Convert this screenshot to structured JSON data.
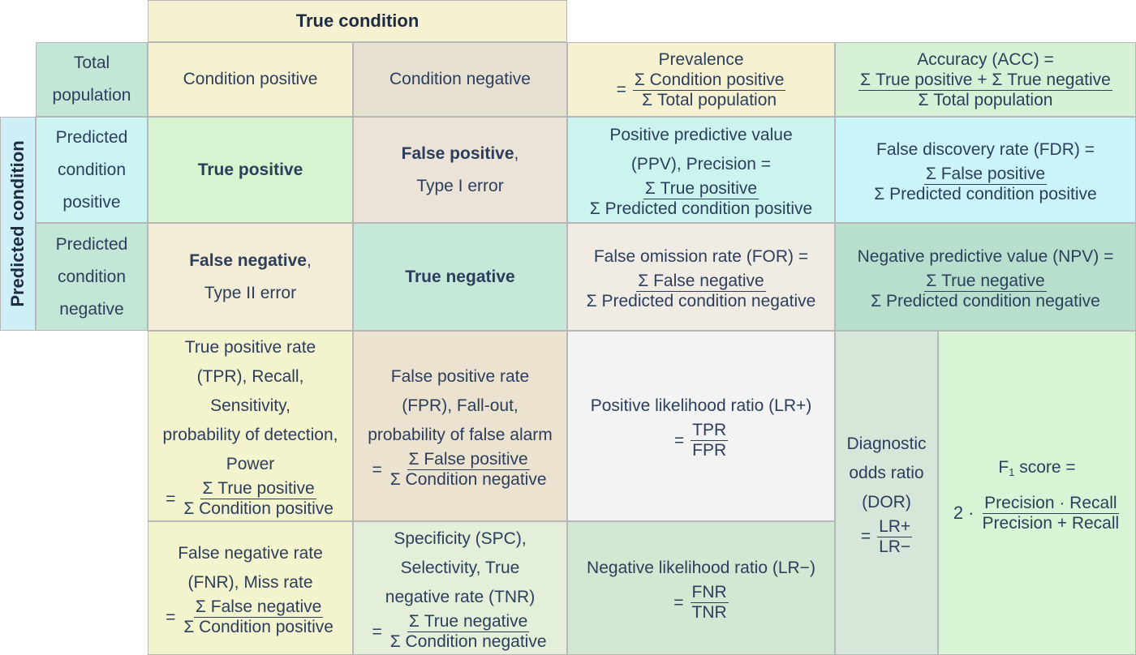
{
  "colors": {
    "yellow": "#f5f1d1",
    "tan": "#e6e0d1",
    "cyan": "#cbf4f3",
    "teal": "#c3e6d6",
    "green_light": "#d6f1d6",
    "mint": "#c7f1dc",
    "fn_bg": "#f3ecd6",
    "tn_bg": "#c5e8d8",
    "tp_bg": "#d7f3cf",
    "fp_bg": "#ebe3d7",
    "for_bg": "#f0ece4",
    "npv_bg": "#b8dfcd",
    "lrp_bg": "#f3f3f3",
    "lrn_bg": "#d3e8d3",
    "dor_bg": "#d6e6d8",
    "f1_bg": "#d9f4d4",
    "text": "#2c3e5c"
  },
  "header": {
    "true_condition": "True condition",
    "predicted_condition": "Predicted condition",
    "total_population_1": "Total",
    "total_population_2": "population",
    "condition_positive": "Condition positive",
    "condition_negative": "Condition negative"
  },
  "rows": {
    "pcp_1": "Predicted",
    "pcp_2": "condition",
    "pcp_3": "positive",
    "pcn_1": "Predicted",
    "pcn_2": "condition",
    "pcn_3": "negative"
  },
  "cells": {
    "true_positive": "True positive",
    "false_positive": "False positive",
    "false_positive_comma": ",",
    "type_i": "Type I error",
    "false_negative": "False negative",
    "false_negative_comma": ",",
    "type_ii": "Type II error",
    "true_negative": "True negative"
  },
  "metrics": {
    "prevalence": {
      "title": "Prevalence",
      "eq": "=",
      "num": "Σ Condition positive",
      "den": "Σ Total population"
    },
    "accuracy": {
      "title": "Accuracy (ACC) =",
      "num": "Σ True positive + Σ True negative",
      "den": "Σ Total population"
    },
    "ppv": {
      "line1": "Positive predictive value",
      "line2": "(PPV), Precision =",
      "num": "Σ True positive",
      "den": "Σ Predicted condition positive"
    },
    "fdr": {
      "title": "False discovery rate (FDR) =",
      "num": "Σ False positive",
      "den": "Σ Predicted condition positive"
    },
    "for": {
      "title": "False omission rate (FOR) =",
      "num": "Σ False negative",
      "den": "Σ Predicted condition negative"
    },
    "npv": {
      "title": "Negative predictive value (NPV) =",
      "num": "Σ True negative",
      "den": "Σ Predicted condition negative"
    },
    "tpr": {
      "l1": "True positive rate",
      "l2": "(TPR), Recall,",
      "l3": "Sensitivity,",
      "l4": "probability of detection,",
      "l5": "Power",
      "eq": "=",
      "num": "Σ True positive",
      "den": "Σ Condition positive"
    },
    "fpr": {
      "l1": "False positive rate",
      "l2": "(FPR), Fall-out,",
      "l3": "probability of false alarm",
      "eq": "=",
      "num": "Σ False positive",
      "den": "Σ Condition negative"
    },
    "lrp": {
      "title": "Positive likelihood ratio (LR+)",
      "eq": "=",
      "num": "TPR",
      "den": "FPR"
    },
    "dor": {
      "l1": "Diagnostic",
      "l2": "odds ratio",
      "l3": "(DOR)",
      "eq": "=",
      "num": "LR+",
      "den": "LR−"
    },
    "f1": {
      "title_pre": "F",
      "title_sub": "1",
      "title_post": " score =",
      "coef": "2 ·",
      "num": "Precision · Recall",
      "den": "Precision + Recall"
    },
    "fnr": {
      "l1": "False negative rate",
      "l2": "(FNR), Miss rate",
      "eq": "=",
      "num": "Σ False negative",
      "den": "Σ Condition positive"
    },
    "spc": {
      "l1": "Specificity (SPC),",
      "l2": "Selectivity, True",
      "l3": "negative rate (TNR)",
      "eq": "=",
      "num": "Σ True negative",
      "den": "Σ Condition negative"
    },
    "lrn": {
      "title": "Negative likelihood ratio (LR−)",
      "eq": "=",
      "num": "FNR",
      "den": "TNR"
    }
  }
}
